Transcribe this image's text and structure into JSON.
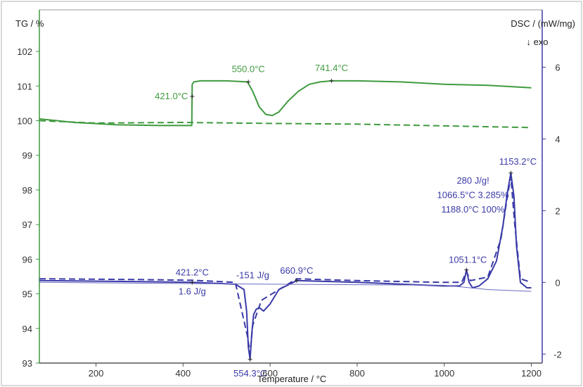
{
  "colors": {
    "tg": "#3f9a3f",
    "dsc": "#3a3aa8",
    "axis_left": "#3f9a3f",
    "axis_right": "#3a3aa8",
    "axis_bottom": "#555555",
    "frame": "#9a9a9a"
  },
  "chart_data": {
    "type": "line",
    "xlabel": "Temperature / °C",
    "y1label": "TG / %",
    "y2label": "DSC / (mW/mg)",
    "exo_label": "↓ exo",
    "xlim": [
      70,
      1225
    ],
    "y1lim": [
      93,
      103.2
    ],
    "y2lim": [
      -2.25,
      7.6
    ],
    "x_ticks": [
      200,
      400,
      600,
      800,
      1000,
      1200
    ],
    "y1_ticks": [
      93,
      94,
      95,
      96,
      97,
      98,
      99,
      100,
      101,
      102
    ],
    "y2_ticks": [
      -2,
      0,
      2,
      4,
      6
    ],
    "series": [
      {
        "axis": "y1",
        "style": "solid",
        "color": "#3f9a3f",
        "x": [
          70,
          150,
          250,
          350,
          420,
          421,
          425,
          440,
          500,
          548,
          560,
          575,
          590,
          605,
          620,
          640,
          665,
          690,
          715,
          741,
          800,
          900,
          1000,
          1100,
          1200
        ],
        "y": [
          100.05,
          99.95,
          99.88,
          99.86,
          99.86,
          101.05,
          101.12,
          101.15,
          101.15,
          101.12,
          100.85,
          100.4,
          100.18,
          100.15,
          100.25,
          100.55,
          100.85,
          101.05,
          101.12,
          101.15,
          101.15,
          101.12,
          101.05,
          101.02,
          100.95
        ]
      },
      {
        "axis": "y1",
        "style": "dashed",
        "color": "#3f9a3f",
        "x": [
          70,
          200,
          400,
          600,
          800,
          1000,
          1200
        ],
        "y": [
          100.0,
          99.93,
          99.95,
          99.92,
          99.9,
          99.85,
          99.8
        ]
      },
      {
        "axis": "y2",
        "style": "solid",
        "color": "#3a3aa8",
        "x": [
          70,
          300,
          421,
          520,
          540,
          546,
          550,
          554,
          558,
          562,
          568,
          575,
          585,
          600,
          620,
          661,
          800,
          1000,
          1035,
          1045,
          1051,
          1057,
          1065,
          1080,
          1100,
          1120,
          1135,
          1145,
          1153,
          1160,
          1166,
          1175,
          1190,
          1200
        ],
        "y": [
          0.05,
          0.02,
          0.0,
          -0.05,
          -0.2,
          -0.8,
          -1.8,
          -2.15,
          -1.4,
          -0.9,
          -0.75,
          -0.7,
          -0.8,
          -0.6,
          -0.2,
          0.05,
          0.0,
          -0.1,
          -0.1,
          0.0,
          0.35,
          0.0,
          -0.15,
          -0.1,
          0.1,
          0.6,
          1.6,
          2.5,
          3.05,
          2.4,
          1.0,
          0.0,
          -0.15,
          -0.15
        ]
      },
      {
        "axis": "y2",
        "style": "dashed",
        "color": "#3a3aa8",
        "x": [
          70,
          300,
          421,
          520,
          548,
          554,
          560,
          580,
          661,
          800,
          1000,
          1040,
          1051,
          1060,
          1100,
          1130,
          1145,
          1153,
          1162,
          1175,
          1200
        ],
        "y": [
          0.1,
          0.08,
          0.06,
          0.0,
          -1.5,
          -2.0,
          -1.2,
          -0.5,
          0.1,
          0.05,
          0.0,
          0.0,
          0.3,
          0.05,
          0.15,
          1.2,
          2.4,
          2.95,
          1.6,
          0.1,
          0.0
        ]
      },
      {
        "axis": "y2",
        "style": "thin",
        "color": "#6b6bc0",
        "x": [
          70,
          600,
          1000,
          1100,
          1200
        ],
        "y": [
          0.0,
          -0.05,
          -0.08,
          -0.2,
          -0.25
        ]
      }
    ],
    "annotations": [
      {
        "text": "421.0°C",
        "series": "tg",
        "x": 421,
        "y": 100.7,
        "anchor": "end",
        "dx": -6,
        "dy": 4
      },
      {
        "text": "550.0°C",
        "series": "tg",
        "x": 550,
        "y": 101.12,
        "anchor": "middle",
        "dx": 0,
        "dy": -14
      },
      {
        "text": "741.4°C",
        "series": "tg",
        "x": 741,
        "y": 101.15,
        "anchor": "middle",
        "dx": 0,
        "dy": -14
      },
      {
        "text": "421.2°C",
        "series": "dsc",
        "x": 421,
        "y": 0.0,
        "anchor": "middle",
        "dx": 0,
        "dy": -10
      },
      {
        "text": "1.6 J/g",
        "series": "dsc",
        "x": 421,
        "y": 0.0,
        "anchor": "middle",
        "dx": 0,
        "dy": 17
      },
      {
        "text": "-151 J/g",
        "series": "dsc",
        "x": 560,
        "y": 0.0,
        "anchor": "middle",
        "dx": 0,
        "dy": -6
      },
      {
        "text": "660.9°C",
        "series": "dsc",
        "x": 661,
        "y": 0.05,
        "anchor": "middle",
        "dx": 0,
        "dy": -10
      },
      {
        "text": "554.3°C",
        "series": "dsc",
        "x": 554,
        "y": -2.15,
        "anchor": "middle",
        "dx": 0,
        "dy": 24
      },
      {
        "text": "1051.1°C",
        "series": "dsc",
        "x": 1051,
        "y": 0.35,
        "anchor": "middle",
        "dx": 2,
        "dy": -10
      },
      {
        "text": "1153.2°C",
        "series": "dsc",
        "x": 1153,
        "y": 3.05,
        "anchor": "middle",
        "dx": 10,
        "dy": -12
      },
      {
        "text": "280 J/g!",
        "series": "dsc",
        "x": 1066,
        "y": 2.75,
        "anchor": "middle",
        "dx": 0,
        "dy": 0
      },
      {
        "text": "1066.5°C  3.285%",
        "series": "dsc",
        "x": 1066,
        "y": 2.35,
        "anchor": "middle",
        "dx": 0,
        "dy": 0
      },
      {
        "text": "1188.0°C  100%",
        "series": "dsc",
        "x": 1066,
        "y": 1.95,
        "anchor": "middle",
        "dx": 0,
        "dy": 0
      }
    ],
    "markers": [
      {
        "series": "tg",
        "x": 421,
        "y": 100.7
      },
      {
        "series": "tg",
        "x": 550,
        "y": 101.12
      },
      {
        "series": "tg",
        "x": 741,
        "y": 101.15
      },
      {
        "series": "dsc",
        "x": 421,
        "y": 0.0
      },
      {
        "series": "dsc",
        "x": 661,
        "y": 0.05
      },
      {
        "series": "dsc",
        "x": 554,
        "y": -2.15
      },
      {
        "series": "dsc",
        "x": 1051,
        "y": 0.35
      },
      {
        "series": "dsc",
        "x": 1153,
        "y": 3.05
      }
    ]
  }
}
